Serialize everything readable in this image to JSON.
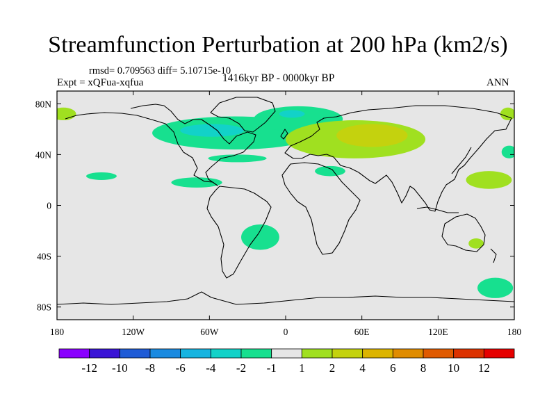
{
  "title": "Streamfunction Perturbation at 200 hPa (km2/s)",
  "stats_line": "rmsd= 0.709563 diff= 5.10715e-10",
  "experiment_line": "Expt = xQFua-xqfua",
  "period_line": "1416kyr BP - 0000kyr BP",
  "season": "ANN",
  "map": {
    "projection": "cylindrical-equidistant",
    "lon_range": [
      -180,
      180
    ],
    "lat_range": [
      -90,
      90
    ],
    "background_color": "#e6e6e6",
    "x_ticks": [
      {
        "value": -180,
        "label": "180"
      },
      {
        "value": -120,
        "label": "120W"
      },
      {
        "value": -60,
        "label": "60W"
      },
      {
        "value": 0,
        "label": "0"
      },
      {
        "value": 60,
        "label": "60E"
      },
      {
        "value": 120,
        "label": "120E"
      },
      {
        "value": 180,
        "label": "180"
      }
    ],
    "y_ticks": [
      {
        "value": 80,
        "label": "80N"
      },
      {
        "value": 40,
        "label": "40N"
      },
      {
        "value": 0,
        "label": "0"
      },
      {
        "value": -40,
        "label": "40S"
      },
      {
        "value": -80,
        "label": "80S"
      }
    ]
  },
  "colorbar": {
    "colors": [
      "#8a00ff",
      "#3a14d6",
      "#1f5bd6",
      "#1a8ae0",
      "#16b4e0",
      "#12d2c8",
      "#17e08f",
      "#e6e6e6",
      "#a0e020",
      "#c4d20e",
      "#dcb400",
      "#e08c00",
      "#e05a00",
      "#dc3200",
      "#e60000"
    ],
    "labels": [
      "-12",
      "-10",
      "-8",
      "-6",
      "-4",
      "-2",
      "-1",
      "1",
      "2",
      "4",
      "6",
      "8",
      "10",
      "12"
    ]
  },
  "chart_data": {
    "type": "heatmap",
    "title": "Streamfunction Perturbation at 200 hPa (km2/s)",
    "xlabel": "",
    "ylabel": "",
    "x_range": [
      -180,
      180
    ],
    "y_range": [
      -90,
      90
    ],
    "levels": [
      -12,
      -10,
      -8,
      -6,
      -4,
      -2,
      -1,
      1,
      2,
      4,
      6,
      8,
      10,
      12
    ],
    "regions": [
      {
        "desc": "north atlantic band",
        "center": [
          -40,
          57
        ],
        "radius": [
          65,
          13
        ],
        "value": -1.5
      },
      {
        "desc": "eastern north atlantic",
        "center": [
          10,
          68
        ],
        "radius": [
          35,
          10
        ],
        "value": -1.5
      },
      {
        "desc": "north atlantic core",
        "center": [
          -58,
          59
        ],
        "radius": [
          25,
          5
        ],
        "value": -2.5
      },
      {
        "desc": "norwegian sea core",
        "center": [
          5,
          72
        ],
        "radius": [
          10,
          3
        ],
        "value": -2.5
      },
      {
        "desc": "mid-atlantic strip",
        "center": [
          -38,
          37
        ],
        "radius": [
          23,
          3
        ],
        "value": -1.5
      },
      {
        "desc": "caribbean",
        "center": [
          -70,
          18
        ],
        "radius": [
          20,
          4
        ],
        "value": -1.5
      },
      {
        "desc": "central pacific north",
        "center": [
          -145,
          23
        ],
        "radius": [
          12,
          3
        ],
        "value": -1.5
      },
      {
        "desc": "south atlantic",
        "center": [
          -20,
          -25
        ],
        "radius": [
          15,
          10
        ],
        "value": -1.5
      },
      {
        "desc": "north africa / arabia",
        "center": [
          35,
          27
        ],
        "radius": [
          12,
          4
        ],
        "value": -1.5
      },
      {
        "desc": "eastern australia",
        "center": [
          150,
          -30
        ],
        "radius": [
          6,
          4
        ],
        "value": 1.5
      },
      {
        "desc": "tasman sea",
        "center": [
          165,
          -65
        ],
        "radius": [
          14,
          8
        ],
        "value": -1.5
      },
      {
        "desc": "eurasia positive lobe",
        "center": [
          55,
          52
        ],
        "radius": [
          55,
          15
        ],
        "value": 1.5
      },
      {
        "desc": "eurasia positive core",
        "center": [
          68,
          55
        ],
        "radius": [
          28,
          9
        ],
        "value": 3
      },
      {
        "desc": "northwest pacific",
        "center": [
          160,
          20
        ],
        "radius": [
          18,
          7
        ],
        "value": 1.5
      },
      {
        "desc": "alaska positive",
        "center": [
          -175,
          72
        ],
        "radius": [
          10,
          5
        ],
        "value": 1.5
      },
      {
        "desc": "far east north",
        "center": [
          175,
          72
        ],
        "radius": [
          6,
          5
        ],
        "value": 1.5
      },
      {
        "desc": "north pacific negative",
        "center": [
          176,
          42
        ],
        "radius": [
          6,
          5
        ],
        "value": -1.5
      }
    ]
  }
}
